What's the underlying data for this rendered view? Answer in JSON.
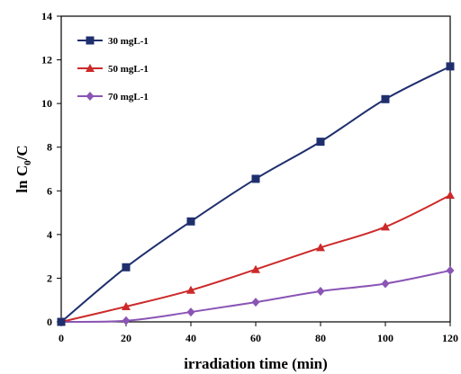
{
  "chart_data": {
    "type": "line",
    "xlabel": "irradiation time (min)",
    "ylabel_main": "ln C",
    "ylabel_sub": "0",
    "ylabel_tail": "/C",
    "xlim": [
      0,
      120
    ],
    "ylim": [
      0,
      14
    ],
    "x_ticks": [
      "0",
      "20",
      "40",
      "60",
      "80",
      "100",
      "120"
    ],
    "y_ticks": [
      "0",
      "2",
      "4",
      "6",
      "8",
      "10",
      "12",
      "14"
    ],
    "grid": false,
    "legend_position": "top-left",
    "x": [
      0,
      20,
      40,
      60,
      80,
      100,
      120
    ],
    "series": [
      {
        "name": "30 mgL-1",
        "color": "#1f2f6e",
        "marker": "square",
        "values": [
          0,
          2.5,
          4.6,
          6.55,
          8.25,
          10.2,
          11.7
        ]
      },
      {
        "name": "50 mgL-1",
        "color": "#cc2a2a",
        "marker": "triangle",
        "values": [
          0,
          0.7,
          1.45,
          2.4,
          3.4,
          4.35,
          5.8
        ]
      },
      {
        "name": "70 mgL-1",
        "color": "#8a55b5",
        "marker": "diamond",
        "values": [
          0,
          0.05,
          0.45,
          0.9,
          1.4,
          1.75,
          2.35
        ]
      }
    ]
  }
}
